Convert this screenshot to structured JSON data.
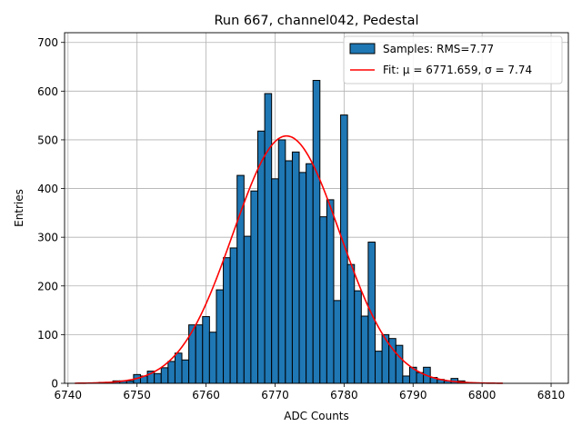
{
  "chart_data": {
    "type": "bar",
    "title": "Run 667, channel042, Pedestal",
    "xlabel": "ADC Counts",
    "ylabel": "Entries",
    "xlim": [
      6739.5,
      6812.5
    ],
    "ylim": [
      0,
      720
    ],
    "xticks": [
      6740,
      6750,
      6760,
      6770,
      6780,
      6790,
      6800,
      6810
    ],
    "yticks": [
      0,
      100,
      200,
      300,
      400,
      500,
      600,
      700
    ],
    "grid": true,
    "legend_position": "top-right",
    "bin_width": 1,
    "series": [
      {
        "name": "Samples: RMS=7.77",
        "color": "#1f77b4",
        "edgecolor": "#000000",
        "bins": [
          6745,
          6746,
          6747,
          6748,
          6749,
          6750,
          6751,
          6752,
          6753,
          6754,
          6755,
          6756,
          6757,
          6758,
          6759,
          6760,
          6761,
          6762,
          6763,
          6764,
          6765,
          6766,
          6767,
          6768,
          6769,
          6770,
          6771,
          6772,
          6773,
          6774,
          6775,
          6776,
          6777,
          6778,
          6779,
          6780,
          6781,
          6782,
          6783,
          6784,
          6785,
          6786,
          6787,
          6788,
          6789,
          6790,
          6791,
          6792,
          6793,
          6794,
          6795,
          6796,
          6797
        ],
        "values": [
          2,
          2,
          5,
          5,
          5,
          18,
          15,
          25,
          20,
          32,
          45,
          62,
          48,
          120,
          120,
          137,
          105,
          192,
          258,
          278,
          427,
          302,
          395,
          518,
          595,
          420,
          500,
          457,
          475,
          433,
          451,
          622,
          342,
          377,
          170,
          551,
          244,
          190,
          138,
          290,
          66,
          100,
          92,
          78,
          15,
          33,
          22,
          33,
          12,
          8,
          5,
          10,
          5
        ]
      },
      {
        "name": "Fit: μ = 6771.659, σ = 7.74",
        "type": "line",
        "color": "#ff0000",
        "mu": 6771.659,
        "sigma": 7.74,
        "amplitude": 508,
        "x_range": [
          6741,
          6803
        ]
      }
    ]
  }
}
